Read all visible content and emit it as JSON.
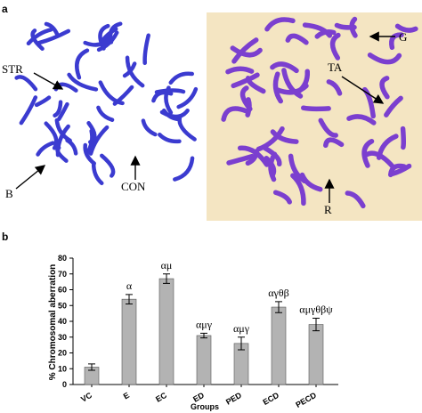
{
  "panel_labels": [
    "a",
    "b"
  ],
  "image_annotations": {
    "left": [
      "STR",
      "B",
      "CON"
    ],
    "right": [
      "G",
      "TA",
      "R"
    ]
  },
  "chart_data": {
    "type": "bar",
    "y_label": "% Chromosomal aberration",
    "x_label": "Groups",
    "categories": [
      "VC",
      "E",
      "EC",
      "ED",
      "PED",
      "ECD",
      "PECD"
    ],
    "values": [
      11,
      54,
      67,
      31,
      26,
      49,
      38
    ],
    "errors": [
      2,
      3,
      3,
      1.5,
      4,
      3.5,
      4
    ],
    "annotations": [
      null,
      "α",
      "αμ",
      "αμγ",
      "αμγ",
      "αγθβ",
      "αμγθβψ"
    ],
    "color": "#b3b3b3",
    "ylim": [
      0,
      80
    ],
    "yticks": [
      0,
      10,
      20,
      30,
      40,
      50,
      60,
      70,
      80
    ]
  }
}
